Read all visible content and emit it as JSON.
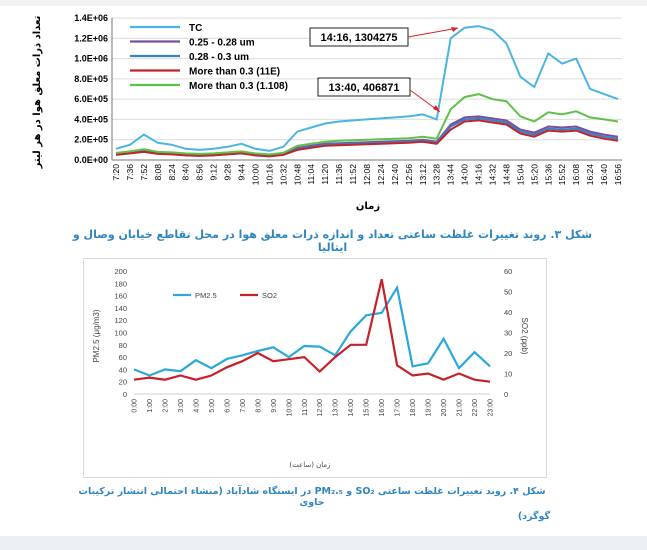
{
  "chart_data": [
    {
      "type": "line",
      "ylabel": "تعداد ذرات معلق هوا در هر لیتر",
      "xlabel": "زمان",
      "ylim": [
        0,
        1400000
      ],
      "y_ticks": [
        "0.0E+00",
        "2.0E+05",
        "4.0E+05",
        "6.0E+05",
        "8.0E+05",
        "1.0E+06",
        "1.2E+06",
        "1.4E+06"
      ],
      "x_ticks": [
        "7:20",
        "7:36",
        "7:52",
        "8:08",
        "8:24",
        "8:40",
        "8:56",
        "9:12",
        "9:28",
        "9:44",
        "10:00",
        "10:16",
        "10:32",
        "10:48",
        "11:04",
        "11:20",
        "11:36",
        "11:52",
        "12:08",
        "12:24",
        "12:40",
        "12:56",
        "13:12",
        "13:28",
        "13:44",
        "14:00",
        "14:16",
        "14:32",
        "14:48",
        "15:04",
        "15:20",
        "15:36",
        "15:52",
        "16:08",
        "16:24",
        "16:40",
        "16:56"
      ],
      "grid": "horizontal",
      "legend_position": "top-left",
      "series": [
        {
          "name": "TC",
          "color": "#4ab5e1",
          "values": [
            110000,
            150000,
            250000,
            170000,
            150000,
            110000,
            100000,
            110000,
            130000,
            160000,
            110000,
            90000,
            130000,
            280000,
            320000,
            360000,
            380000,
            390000,
            400000,
            410000,
            420000,
            430000,
            450000,
            400000,
            1200000,
            1304275,
            1320000,
            1280000,
            1150000,
            820000,
            720000,
            1050000,
            950000,
            1000000,
            700000,
            650000,
            600000
          ]
        },
        {
          "name": "0.25 - 0.28 um",
          "color": "#7b4fa0",
          "values": [
            60000,
            75000,
            95000,
            70000,
            65000,
            55000,
            50000,
            55000,
            65000,
            75000,
            55000,
            45000,
            60000,
            120000,
            140000,
            160000,
            165000,
            170000,
            175000,
            180000,
            185000,
            190000,
            200000,
            180000,
            350000,
            420000,
            430000,
            410000,
            390000,
            300000,
            270000,
            330000,
            320000,
            330000,
            280000,
            250000,
            230000
          ]
        },
        {
          "name": "0.28 - 0.3 um",
          "color": "#3a7fc2",
          "values": [
            55000,
            70000,
            85000,
            65000,
            60000,
            50000,
            45000,
            50000,
            60000,
            70000,
            50000,
            40000,
            55000,
            110000,
            130000,
            150000,
            155000,
            160000,
            165000,
            170000,
            175000,
            180000,
            190000,
            170000,
            330000,
            400000,
            410000,
            390000,
            370000,
            280000,
            250000,
            310000,
            300000,
            310000,
            260000,
            230000,
            210000
          ]
        },
        {
          "name": "More than 0.3 (11E)",
          "color": "#c0252d",
          "values": [
            50000,
            65000,
            80000,
            60000,
            55000,
            45000,
            40000,
            45000,
            55000,
            65000,
            45000,
            35000,
            50000,
            100000,
            120000,
            140000,
            145000,
            150000,
            155000,
            160000,
            165000,
            170000,
            180000,
            160000,
            300000,
            380000,
            390000,
            370000,
            350000,
            260000,
            230000,
            290000,
            280000,
            290000,
            240000,
            210000,
            190000
          ]
        },
        {
          "name": "More than 0.3 (1.108)",
          "color": "#5ec24a",
          "values": [
            70000,
            85000,
            105000,
            80000,
            75000,
            65000,
            60000,
            65000,
            75000,
            85000,
            65000,
            55000,
            70000,
            140000,
            160000,
            180000,
            190000,
            195000,
            200000,
            205000,
            210000,
            215000,
            230000,
            210000,
            500000,
            620000,
            650000,
            600000,
            580000,
            430000,
            380000,
            470000,
            450000,
            480000,
            420000,
            400000,
            380000
          ]
        }
      ],
      "annotations": [
        {
          "text": "14:16, 1304275"
        },
        {
          "text": "13:40, 406871"
        }
      ]
    },
    {
      "type": "line",
      "ylabel": "PM2.5 (μg/m3)",
      "ylabel2": "SO2 (ppb)",
      "xlabel": "زمان (ساعت)",
      "ylim": [
        0,
        200
      ],
      "ylim2": [
        0,
        60
      ],
      "y_ticks": [
        "0",
        "20",
        "40",
        "60",
        "80",
        "100",
        "120",
        "140",
        "160",
        "180",
        "200"
      ],
      "y2_ticks": [
        "0",
        "10",
        "20",
        "30",
        "40",
        "50",
        "60"
      ],
      "categories": [
        "0:00",
        "1:00",
        "2:00",
        "3:00",
        "4:00",
        "5:00",
        "6:00",
        "7:00",
        "8:00",
        "9:00",
        "10:00",
        "11:00",
        "12:00",
        "13:00",
        "14:00",
        "15:00",
        "16:00",
        "17:00",
        "18:00",
        "19:00",
        "20:00",
        "21:00",
        "22:00",
        "23:00"
      ],
      "legend_position": "top-center",
      "series": [
        {
          "name": "PM2.5",
          "axis": "left",
          "color": "#2aa7dc",
          "values": [
            40,
            30,
            40,
            37,
            55,
            42,
            57,
            63,
            70,
            76,
            60,
            78,
            77,
            63,
            102,
            128,
            132,
            173,
            45,
            50,
            90,
            42,
            68,
            45
          ]
        },
        {
          "name": "SO2",
          "axis": "right",
          "color": "#c8202a",
          "values": [
            7,
            8,
            7,
            9,
            7,
            9,
            13,
            16,
            20,
            16,
            17,
            18,
            11,
            18,
            24,
            24,
            56,
            14,
            9,
            10,
            7,
            10,
            7,
            6
          ]
        }
      ]
    }
  ],
  "captions": {
    "fig3": "شکل ۳. روند تغییرات غلظت ساعتی تعداد و اندازه ذرات معلق هوا در محل تقاطع خیابان وصال و ایتالیا",
    "fig4_line1": "شکل ۴. روند تغییرات غلظت ساعتی SO₂ و PM₂.₅ در ایستگاه شادآباد (منشاء احتمالی انتشار ترکیبات حاوی",
    "fig4_line2": "گوگرد)"
  }
}
